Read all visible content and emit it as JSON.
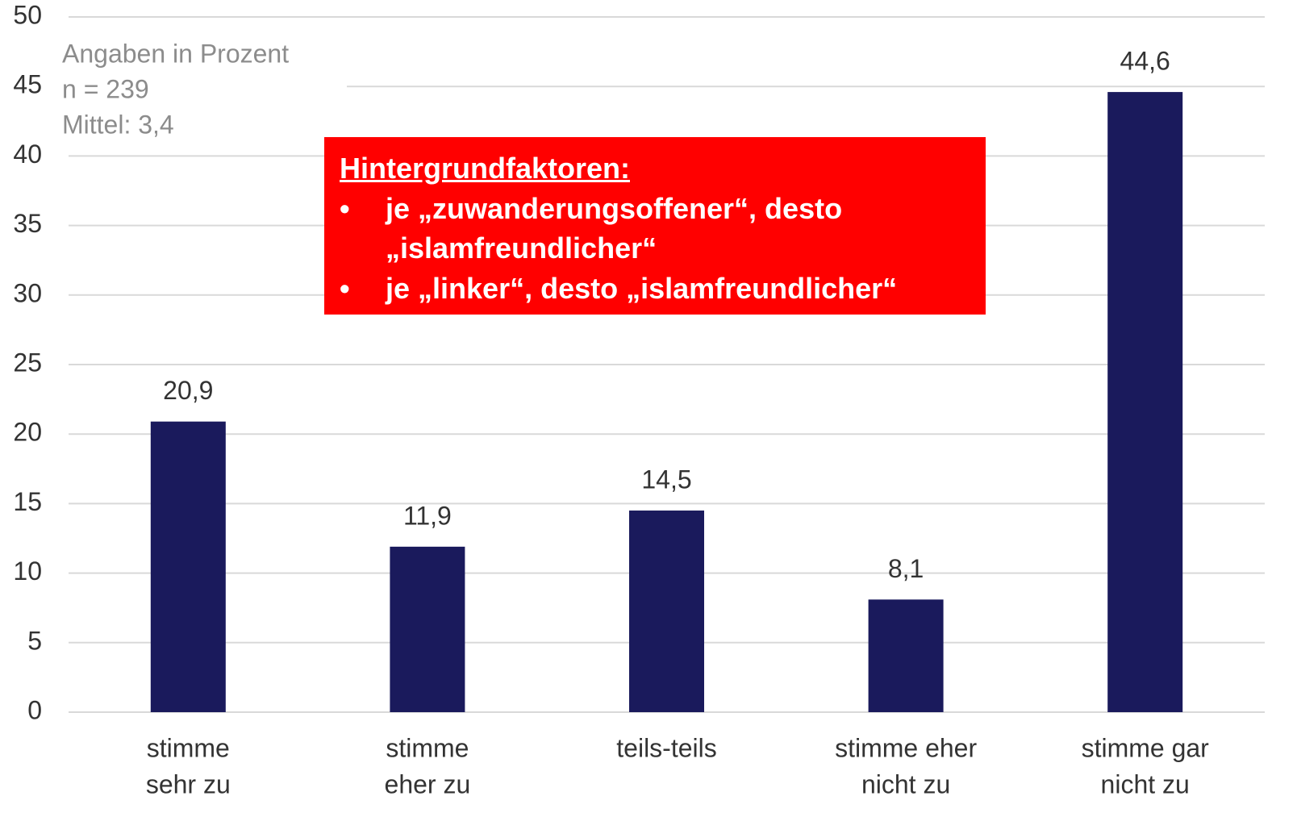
{
  "chart_data": {
    "type": "bar",
    "categories": [
      [
        "stimme",
        "sehr zu"
      ],
      [
        "stimme",
        "eher zu"
      ],
      [
        "teils-teils"
      ],
      [
        "stimme eher",
        "nicht zu"
      ],
      [
        "stimme gar",
        "nicht zu"
      ]
    ],
    "values": [
      20.9,
      11.9,
      14.5,
      8.1,
      44.6
    ],
    "value_labels": [
      "20,9",
      "11,9",
      "14,5",
      "8,1",
      "44,6"
    ],
    "color": "#1a1a5c",
    "ylim": [
      0,
      50
    ],
    "yticks": [
      0,
      5,
      10,
      15,
      20,
      25,
      30,
      35,
      40,
      45,
      50
    ],
    "grid": true,
    "notes": [
      "Angaben in Prozent",
      "n = 239",
      "Mittel: 3,4"
    ],
    "callout": {
      "title": "Hintergrundfaktoren:",
      "items": [
        "je „zuwanderungsoffener“, desto „islamfreundlicher“",
        "je „linker“, desto „islamfreundlicher“"
      ]
    }
  }
}
